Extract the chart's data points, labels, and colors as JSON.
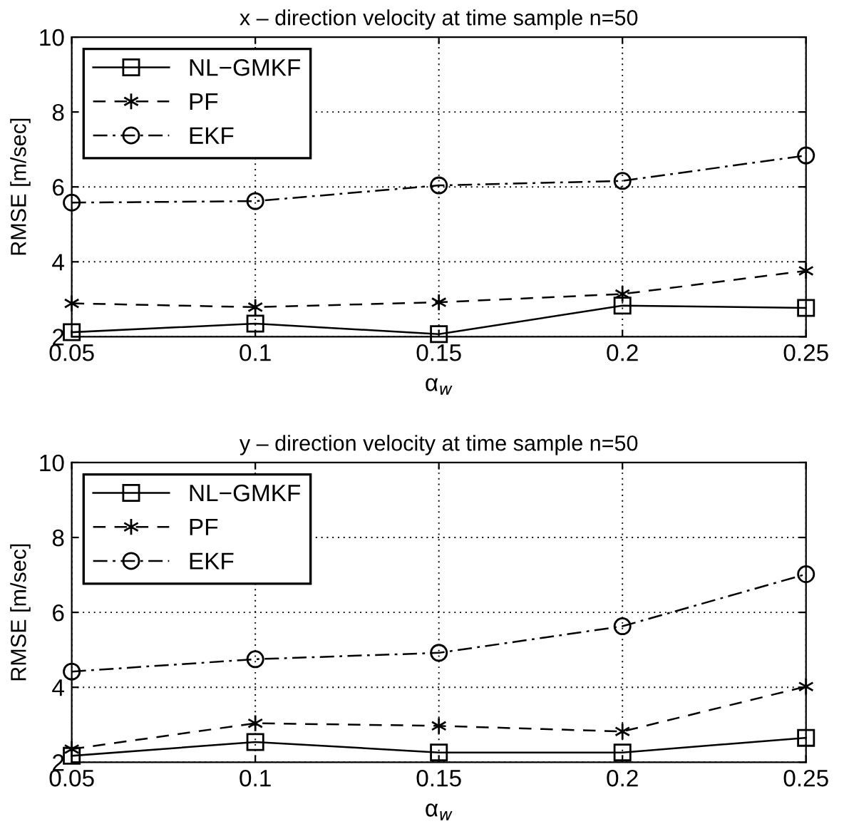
{
  "chart_data": [
    {
      "type": "line",
      "title": "x – direction velocity at time sample n=50",
      "xlabel": "α$_{w}$",
      "ylabel": "RMSE [m/sec]",
      "x": [
        0.05,
        0.1,
        0.15,
        0.2,
        0.25
      ],
      "xlim": [
        0.05,
        0.25
      ],
      "xticks": [
        0.05,
        0.1,
        0.15,
        0.2,
        0.25
      ],
      "ylim": [
        2,
        10
      ],
      "yticks": [
        2,
        4,
        6,
        8,
        10
      ],
      "grid": true,
      "legend": "top left",
      "series": [
        {
          "name": "NL−GMKF",
          "color": "#000000",
          "marker": "square",
          "line_style": "solid",
          "values": [
            2.12,
            2.35,
            2.07,
            2.83,
            2.77
          ]
        },
        {
          "name": "PF",
          "color": "#000000",
          "marker": "cross",
          "line_style": "dashed",
          "values": [
            2.89,
            2.79,
            2.92,
            3.14,
            3.76
          ]
        },
        {
          "name": "EKF",
          "color": "#000000",
          "marker": "circle",
          "line_style": "dashdot",
          "values": [
            5.58,
            5.62,
            6.04,
            6.16,
            6.84
          ]
        }
      ]
    },
    {
      "type": "line",
      "title": "y – direction velocity at time sample n=50",
      "xlabel": "α$_{w}$",
      "ylabel": "RMSE [m/sec]",
      "x": [
        0.05,
        0.1,
        0.15,
        0.2,
        0.25
      ],
      "xlim": [
        0.05,
        0.25
      ],
      "xticks": [
        0.05,
        0.1,
        0.15,
        0.2,
        0.25
      ],
      "ylim": [
        2,
        10
      ],
      "yticks": [
        2,
        4,
        6,
        8,
        10
      ],
      "grid": true,
      "legend": "top left",
      "series": [
        {
          "name": "NL−GMKF",
          "color": "#000000",
          "marker": "square",
          "line_style": "solid",
          "values": [
            2.17,
            2.54,
            2.26,
            2.26,
            2.65
          ]
        },
        {
          "name": "PF",
          "color": "#000000",
          "marker": "cross",
          "line_style": "dashed",
          "values": [
            2.35,
            3.04,
            2.97,
            2.82,
            4.02
          ]
        },
        {
          "name": "EKF",
          "color": "#000000",
          "marker": "circle",
          "line_style": "dashdot",
          "values": [
            4.42,
            4.75,
            4.92,
            5.63,
            7.02
          ]
        }
      ]
    }
  ]
}
